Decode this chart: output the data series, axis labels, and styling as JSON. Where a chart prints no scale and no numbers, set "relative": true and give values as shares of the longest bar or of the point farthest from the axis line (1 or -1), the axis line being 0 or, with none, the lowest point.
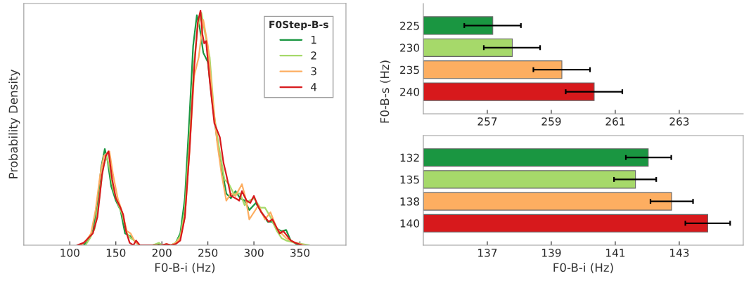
{
  "chart_data": [
    {
      "type": "line",
      "relative": true,
      "xlabel": "F0-B-i (Hz)",
      "ylabel": "Probability Density",
      "xlim": [
        50,
        400
      ],
      "xticks": [
        100,
        150,
        200,
        250,
        300,
        350
      ],
      "legend": "top right",
      "legend_title": "F0Step-B-s",
      "grid": false,
      "tick_labels": "x",
      "series": [
        {
          "name": "1",
          "color": "#1a9641",
          "x": [
            115,
            120,
            125,
            130,
            134,
            138,
            141,
            145,
            150,
            155,
            160,
            165,
            170,
            175,
            180,
            190,
            198,
            200,
            205,
            210,
            215,
            220,
            225,
            230,
            234,
            238,
            241,
            245,
            250,
            255,
            260,
            265,
            270,
            275,
            280,
            285,
            290,
            295,
            302,
            310,
            315,
            320,
            325,
            330,
            335,
            340,
            348
          ],
          "values": [
            0.0,
            0.02,
            0.06,
            0.17,
            0.33,
            0.41,
            0.36,
            0.25,
            0.19,
            0.15,
            0.05,
            0.04,
            0.02,
            0.0,
            0.0,
            0.0,
            0.005,
            0.0,
            0.0,
            0.0,
            0.01,
            0.05,
            0.2,
            0.55,
            0.85,
            0.98,
            0.93,
            0.82,
            0.78,
            0.6,
            0.45,
            0.33,
            0.22,
            0.2,
            0.23,
            0.2,
            0.19,
            0.15,
            0.18,
            0.13,
            0.1,
            0.1,
            0.07,
            0.06,
            0.065,
            0.02,
            0.0
          ]
        },
        {
          "name": "2",
          "color": "#a6d96a",
          "x": [
            117,
            122,
            127,
            132,
            136,
            140,
            143,
            147,
            152,
            157,
            162,
            166,
            170,
            175,
            180,
            190,
            197,
            200,
            205,
            210,
            215,
            220,
            225,
            230,
            235,
            239,
            243,
            247,
            252,
            257,
            262,
            268,
            273,
            278,
            285,
            290,
            295,
            300,
            307,
            312,
            318,
            325,
            330,
            335,
            345,
            360
          ],
          "values": [
            0.0,
            0.03,
            0.07,
            0.2,
            0.33,
            0.38,
            0.33,
            0.24,
            0.18,
            0.13,
            0.05,
            0.03,
            0.02,
            0.0,
            0.0,
            0.0,
            0.01,
            0.0,
            0.0,
            0.0,
            0.01,
            0.04,
            0.15,
            0.45,
            0.78,
            0.93,
            0.99,
            0.9,
            0.8,
            0.55,
            0.42,
            0.28,
            0.26,
            0.22,
            0.22,
            0.17,
            0.19,
            0.2,
            0.16,
            0.16,
            0.12,
            0.06,
            0.03,
            0.02,
            0.01,
            0.0
          ]
        },
        {
          "name": "3",
          "color": "#fdae61",
          "x": [
            112,
            118,
            123,
            128,
            133,
            137,
            140,
            143,
            147,
            152,
            157,
            162,
            166,
            170,
            175,
            180,
            190,
            200,
            205,
            210,
            215,
            220,
            225,
            230,
            235,
            240,
            245,
            250,
            255,
            260,
            265,
            270,
            275,
            280,
            287,
            291,
            295,
            300,
            305,
            312,
            318,
            325,
            330,
            335,
            345,
            355
          ],
          "values": [
            0.0,
            0.02,
            0.05,
            0.15,
            0.3,
            0.38,
            0.39,
            0.4,
            0.3,
            0.2,
            0.14,
            0.06,
            0.05,
            0.02,
            0.0,
            0.0,
            0.0,
            0.0,
            0.005,
            0.0,
            0.01,
            0.03,
            0.12,
            0.4,
            0.72,
            0.8,
            0.96,
            0.85,
            0.63,
            0.44,
            0.3,
            0.19,
            0.22,
            0.21,
            0.26,
            0.2,
            0.11,
            0.14,
            0.17,
            0.11,
            0.14,
            0.07,
            0.05,
            0.03,
            0.01,
            0.0
          ]
        },
        {
          "name": "4",
          "color": "#d7191c",
          "x": [
            108,
            115,
            120,
            125,
            130,
            135,
            139,
            142,
            146,
            150,
            155,
            158,
            161,
            165,
            169,
            172,
            176,
            180,
            190,
            200,
            205,
            210,
            215,
            220,
            225,
            230,
            235,
            239,
            242,
            244,
            246,
            248,
            252,
            257,
            263,
            267,
            270,
            275,
            280,
            284,
            287,
            292,
            296,
            300,
            304,
            308,
            312,
            316,
            320,
            324,
            328,
            332,
            336,
            340,
            345,
            352
          ],
          "values": [
            0.0,
            0.01,
            0.03,
            0.05,
            0.12,
            0.3,
            0.38,
            0.4,
            0.28,
            0.2,
            0.16,
            0.13,
            0.06,
            0.01,
            0.0,
            0.02,
            0.0,
            0.0,
            0.0,
            0.0,
            0.005,
            0.0,
            0.005,
            0.02,
            0.12,
            0.4,
            0.75,
            0.95,
            1.0,
            0.9,
            0.86,
            0.87,
            0.7,
            0.52,
            0.46,
            0.35,
            0.3,
            0.21,
            0.2,
            0.19,
            0.23,
            0.19,
            0.18,
            0.21,
            0.17,
            0.14,
            0.12,
            0.1,
            0.11,
            0.08,
            0.05,
            0.06,
            0.04,
            0.02,
            0.01,
            0.0
          ]
        }
      ]
    },
    {
      "type": "bar",
      "orientation": "horizontal",
      "ylabel": "F0-B-s (Hz)",
      "categories": [
        "225",
        "230",
        "235",
        "240"
      ],
      "values": [
        257.17,
        257.78,
        259.33,
        260.34
      ],
      "colors": [
        "#1a9641",
        "#a6d96a",
        "#fdae61",
        "#d7191c"
      ],
      "errors": [
        [
          256.28,
          258.05
        ],
        [
          256.89,
          258.65
        ],
        [
          258.44,
          260.21
        ],
        [
          259.45,
          261.22
        ]
      ],
      "xlim": [
        255,
        265
      ],
      "xticks": [
        257,
        259,
        261,
        263
      ],
      "grid": false
    },
    {
      "type": "bar",
      "orientation": "horizontal",
      "xlabel": "F0-B-i (Hz)",
      "categories": [
        "132",
        "135",
        "138",
        "140"
      ],
      "values": [
        142.03,
        141.63,
        142.76,
        143.89
      ],
      "colors": [
        "#1a9641",
        "#a6d96a",
        "#fdae61",
        "#d7191c"
      ],
      "errors": [
        [
          141.33,
          142.75
        ],
        [
          140.96,
          142.28
        ],
        [
          142.1,
          143.43
        ],
        [
          143.19,
          144.59
        ]
      ],
      "xlim": [
        135,
        145
      ],
      "xticks": [
        137,
        139,
        141,
        143
      ],
      "grid": false
    }
  ]
}
